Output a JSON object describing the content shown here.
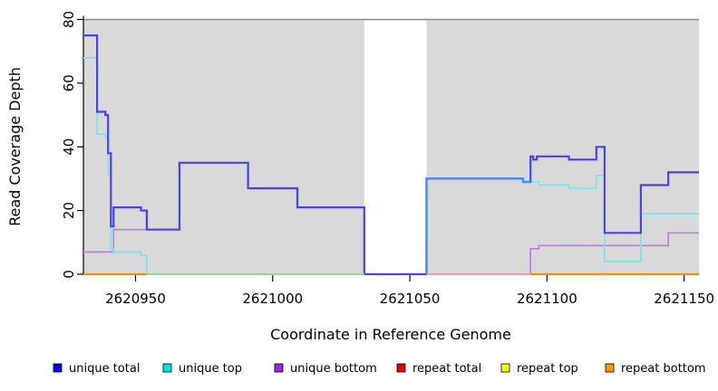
{
  "figure": {
    "xlabel": "Coordinate in Reference Genome",
    "ylabel": "Read Coverage Depth"
  },
  "chart_data": {
    "type": "line",
    "step": true,
    "title": "",
    "xlabel": "Coordinate in Reference Genome",
    "ylabel": "Read Coverage Depth",
    "xlim": [
      2620931,
      2621155.4
    ],
    "ylim": [
      0,
      80
    ],
    "x_ticks": [
      2620950,
      2621000,
      2621050,
      2621100,
      2621150
    ],
    "y_ticks": [
      0,
      20,
      40,
      60,
      80
    ],
    "panel_bg": "#d9d9d9",
    "panel_border_color": "#8c8c8c",
    "gap_region": [
      2621033.4,
      2621056.1
    ],
    "series": [
      {
        "name": "unique bottom",
        "color": "#bd7ce4",
        "width": 1.7,
        "hidden": false,
        "xend": 2621155.4,
        "points": [
          [
            2620931,
            7
          ],
          [
            2620942,
            14
          ],
          [
            2620966,
            35
          ],
          [
            2620991,
            27
          ],
          [
            2621009,
            21
          ],
          [
            2621033.4,
            0
          ],
          [
            2621094,
            8
          ],
          [
            2621097,
            9
          ],
          [
            2621144.2,
            13
          ]
        ]
      },
      {
        "name": "unique top",
        "color": "#7ce3ea",
        "width": 1.7,
        "hidden": false,
        "xend": 2621155.4,
        "points": [
          [
            2620931,
            68
          ],
          [
            2620936,
            44
          ],
          [
            2620939,
            43
          ],
          [
            2620940,
            31
          ],
          [
            2620941,
            8
          ],
          [
            2620942,
            7
          ],
          [
            2620952,
            6
          ],
          [
            2620954.1,
            0
          ],
          [
            2621056.1,
            30
          ],
          [
            2621091.3,
            29
          ],
          [
            2621097,
            28
          ],
          [
            2621108,
            27
          ],
          [
            2621118,
            31
          ],
          [
            2621121,
            4
          ],
          [
            2621134.2,
            19
          ]
        ]
      },
      {
        "name": "unique total",
        "color": "#4a42e4",
        "width": 2.2,
        "hidden": false,
        "xend": 2621155.4,
        "points": [
          [
            2620931,
            75
          ],
          [
            2620936,
            51
          ],
          [
            2620939,
            50
          ],
          [
            2620940,
            38
          ],
          [
            2620941,
            15
          ],
          [
            2620942,
            21
          ],
          [
            2620952,
            20
          ],
          [
            2620954.1,
            14
          ],
          [
            2620966,
            35
          ],
          [
            2620991,
            27
          ],
          [
            2621009,
            21
          ],
          [
            2621033.4,
            0
          ],
          [
            2621056.1,
            30
          ],
          [
            2621091.3,
            29
          ],
          [
            2621094,
            37
          ],
          [
            2621095,
            36
          ],
          [
            2621096.3,
            37
          ],
          [
            2621108,
            36
          ],
          [
            2621118,
            40
          ],
          [
            2621121,
            13
          ],
          [
            2621134.2,
            28
          ],
          [
            2621144.2,
            32
          ]
        ]
      },
      {
        "name": "unique total overlapping unique top",
        "color": "#3f8ef5",
        "width": 2.2,
        "hidden": false,
        "xend": 2621094,
        "points": [
          [
            2621056.1,
            0
          ],
          [
            2621056.1,
            30
          ],
          [
            2621091.3,
            29
          ]
        ]
      },
      {
        "name": "repeat total",
        "color": "#e60000",
        "width": 1.7,
        "hidden": true,
        "xend": 2621155.4,
        "points": [
          [
            2620931,
            0
          ]
        ]
      },
      {
        "name": "repeat top",
        "color": "#ffff00",
        "width": 1.7,
        "hidden": true,
        "xend": 2621155.4,
        "points": [
          [
            2620931,
            0
          ]
        ]
      },
      {
        "name": "repeat bottom",
        "color": "#ff8c00",
        "width": 1.7,
        "hidden": true,
        "xend": 2621155.4,
        "points": [
          [
            2620931,
            0
          ]
        ]
      }
    ],
    "zero_segments": [
      {
        "x0": 2620931,
        "x1": 2620954.1,
        "color": "#ff8c00",
        "note": "repeat lines at 0"
      },
      {
        "x0": 2620954.1,
        "x1": 2621033.4,
        "color": "#96d996",
        "note": "unique top + repeat lines blended at 0"
      },
      {
        "x0": 2621056.1,
        "x1": 2621094,
        "color": "#ef9cb0",
        "note": "unique bottom + repeat lines blended at 0"
      },
      {
        "x0": 2621094,
        "x1": 2621155.4,
        "color": "#ff8c00",
        "note": "repeat lines at 0"
      }
    ],
    "legend": [
      {
        "label": "unique total",
        "color": "#0000ee"
      },
      {
        "label": "unique top",
        "color": "#00e5e5"
      },
      {
        "label": "unique bottom",
        "color": "#9b27d8"
      },
      {
        "label": "repeat total",
        "color": "#e60000"
      },
      {
        "label": "repeat top",
        "color": "#ffff00"
      },
      {
        "label": "repeat bottom",
        "color": "#ff9900"
      }
    ],
    "legend_position": "bottom"
  }
}
